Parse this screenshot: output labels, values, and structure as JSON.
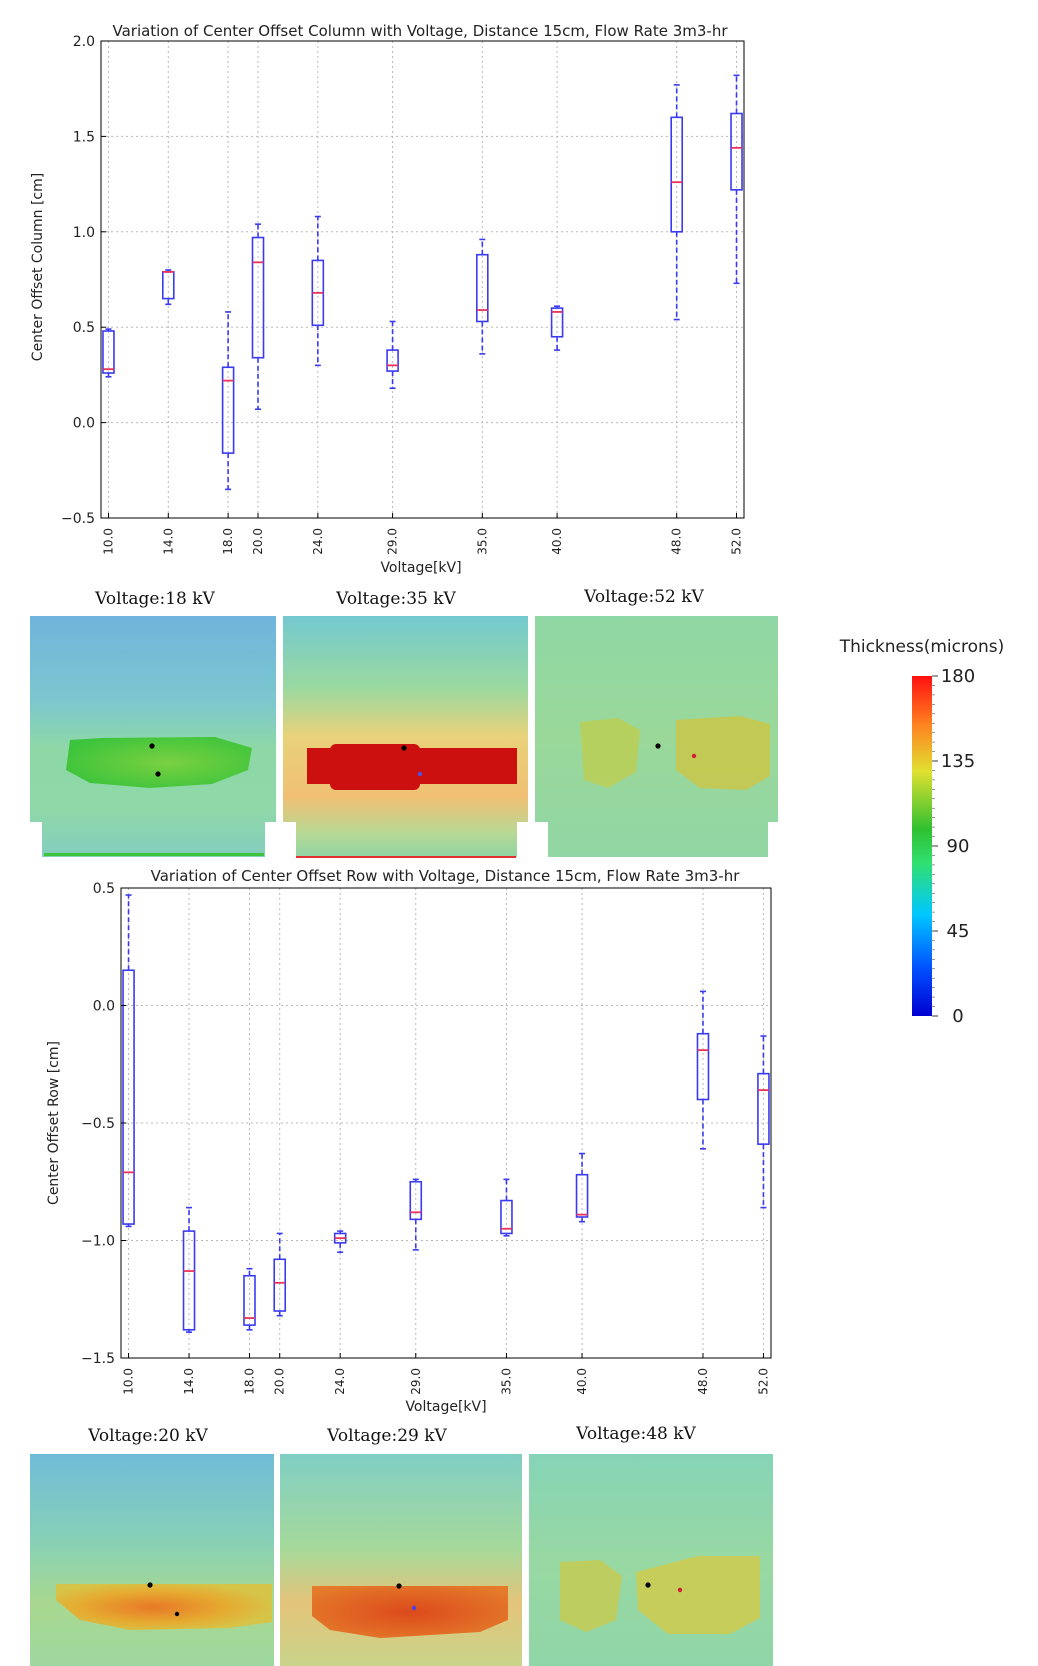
{
  "colors": {
    "box": "#3a3af0",
    "median": "#e8335a",
    "whisker": "#3a3af0",
    "grid": "#b8b8b8",
    "axis": "#000000"
  },
  "chart_data": [
    {
      "type": "box",
      "title": "Variation of Center Offset Column with Voltage, Distance 15cm, Flow Rate 3m3-hr",
      "xlabel": "Voltage[kV]",
      "ylabel": "Center Offset Column [cm]",
      "ylim": [
        -0.5,
        2.0
      ],
      "xlim": [
        9.5,
        52.5
      ],
      "yticks": [
        "2.0",
        "1.5",
        "1.0",
        "0.5",
        "0.0",
        "−0.5"
      ],
      "ytick_values": [
        2.0,
        1.5,
        1.0,
        0.5,
        0.0,
        -0.5
      ],
      "grid": true,
      "categories": [
        "10.0",
        "14.0",
        "18.0",
        "20.0",
        "24.0",
        "29.0",
        "35.0",
        "40.0",
        "48.0",
        "52.0"
      ],
      "x": [
        10,
        14,
        18,
        20,
        24,
        29,
        35,
        40,
        48,
        52
      ],
      "boxes": [
        {
          "min": 0.24,
          "q1": 0.26,
          "median": 0.28,
          "q3": 0.48,
          "max": 0.49
        },
        {
          "min": 0.62,
          "q1": 0.65,
          "median": 0.79,
          "q3": 0.79,
          "max": 0.8
        },
        {
          "min": -0.35,
          "q1": -0.16,
          "median": 0.22,
          "q3": 0.29,
          "max": 0.58
        },
        {
          "min": 0.07,
          "q1": 0.34,
          "median": 0.84,
          "q3": 0.97,
          "max": 1.04
        },
        {
          "min": 0.3,
          "q1": 0.51,
          "median": 0.68,
          "q3": 0.85,
          "max": 1.08
        },
        {
          "min": 0.18,
          "q1": 0.27,
          "median": 0.3,
          "q3": 0.38,
          "max": 0.53
        },
        {
          "min": 0.36,
          "q1": 0.53,
          "median": 0.59,
          "q3": 0.88,
          "max": 0.96
        },
        {
          "min": 0.38,
          "q1": 0.45,
          "median": 0.58,
          "q3": 0.6,
          "max": 0.61
        },
        {
          "min": 0.54,
          "q1": 1.0,
          "median": 1.26,
          "q3": 1.6,
          "max": 1.77
        },
        {
          "min": 0.73,
          "q1": 1.22,
          "median": 1.44,
          "q3": 1.62,
          "max": 1.82
        }
      ]
    },
    {
      "type": "box",
      "title": "Variation of Center Offset Row with Voltage, Distance 15cm, Flow Rate 3m3-hr",
      "xlabel": "Voltage[kV]",
      "ylabel": "Center Offset Row [cm]",
      "ylim": [
        -1.5,
        0.5
      ],
      "xlim": [
        9.5,
        52.5
      ],
      "yticks": [
        "0.5",
        "0.0",
        "−0.5",
        "−1.0",
        "−1.5"
      ],
      "ytick_values": [
        0.5,
        0.0,
        -0.5,
        -1.0,
        -1.5
      ],
      "grid": true,
      "categories": [
        "10.0",
        "14.0",
        "18.0",
        "20.0",
        "24.0",
        "29.0",
        "35.0",
        "40.0",
        "48.0",
        "52.0"
      ],
      "x": [
        10,
        14,
        18,
        20,
        24,
        29,
        35,
        40,
        48,
        52
      ],
      "boxes": [
        {
          "min": -0.94,
          "q1": -0.93,
          "median": -0.71,
          "q3": 0.15,
          "max": 0.47
        },
        {
          "min": -1.39,
          "q1": -1.38,
          "median": -1.13,
          "q3": -0.96,
          "max": -0.86
        },
        {
          "min": -1.38,
          "q1": -1.36,
          "median": -1.33,
          "q3": -1.15,
          "max": -1.12
        },
        {
          "min": -1.32,
          "q1": -1.3,
          "median": -1.18,
          "q3": -1.08,
          "max": -0.97
        },
        {
          "min": -1.05,
          "q1": -1.01,
          "median": -0.99,
          "q3": -0.97,
          "max": -0.96
        },
        {
          "min": -1.04,
          "q1": -0.91,
          "median": -0.88,
          "q3": -0.75,
          "max": -0.74
        },
        {
          "min": -0.98,
          "q1": -0.97,
          "median": -0.95,
          "q3": -0.83,
          "max": -0.74
        },
        {
          "min": -0.92,
          "q1": -0.9,
          "median": -0.89,
          "q3": -0.72,
          "max": -0.63
        },
        {
          "min": -0.61,
          "q1": -0.4,
          "median": -0.19,
          "q3": -0.12,
          "max": 0.06
        },
        {
          "min": -0.86,
          "q1": -0.59,
          "median": -0.36,
          "q3": -0.29,
          "max": -0.13
        }
      ]
    }
  ],
  "thickness_maps": {
    "row1": [
      {
        "label": "Voltage:18  kV",
        "kind": "v18"
      },
      {
        "label": "Voltage:35  kV",
        "kind": "v35"
      },
      {
        "label": "Voltage:52  kV",
        "kind": "v52"
      }
    ],
    "row2": [
      {
        "label": "Voltage:20  kV",
        "kind": "v20"
      },
      {
        "label": "Voltage:29  kV",
        "kind": "v29"
      },
      {
        "label": "Voltage:48  kV",
        "kind": "v48"
      }
    ]
  },
  "colorbar": {
    "title": "Thickness(microns)",
    "ticks": [
      "180",
      "135",
      "90",
      "45",
      "0"
    ],
    "tick_values": [
      180,
      135,
      90,
      45,
      0
    ],
    "min": 0,
    "max": 180
  }
}
